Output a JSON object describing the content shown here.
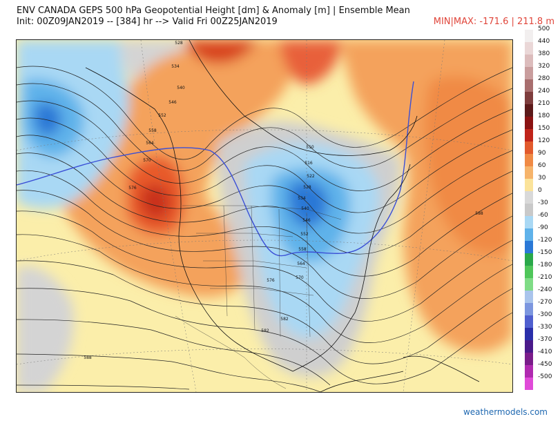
{
  "header": {
    "title": "ENV CANADA GEPS 500 hPa Geopotential Height [dm] & Anomaly [m] | Ensemble Mean",
    "subtitle": "Init: 00Z09JAN2019 -- [384] hr --> Valid Fri 00Z25JAN2019",
    "minmax": "MIN|MAX: -171.6 | 211.8 m"
  },
  "legend": {
    "entries": [
      {
        "label": "500",
        "color": "#f2efef"
      },
      {
        "label": "440",
        "color": "#ead7d7"
      },
      {
        "label": "380",
        "color": "#dcbcbc"
      },
      {
        "label": "320",
        "color": "#c99d9d"
      },
      {
        "label": "280",
        "color": "#a86e6e"
      },
      {
        "label": "240",
        "color": "#7e3d3d"
      },
      {
        "label": "210",
        "color": "#5c1a1a"
      },
      {
        "label": "180",
        "color": "#8a1212"
      },
      {
        "label": "150",
        "color": "#c0241a"
      },
      {
        "label": "120",
        "color": "#e25a2c"
      },
      {
        "label": "90",
        "color": "#f08a45"
      },
      {
        "label": "60",
        "color": "#f6b46b"
      },
      {
        "label": "30",
        "color": "#fbe39a"
      },
      {
        "label": "0",
        "color": "#d9d9d9"
      },
      {
        "label": "-30",
        "color": "#c9c9c9"
      },
      {
        "label": "-60",
        "color": "#a9d8f4"
      },
      {
        "label": "-90",
        "color": "#5fb2ea"
      },
      {
        "label": "-120",
        "color": "#2a78d6"
      },
      {
        "label": "-150",
        "color": "#2aa84a"
      },
      {
        "label": "-180",
        "color": "#4fc65a"
      },
      {
        "label": "-210",
        "color": "#7fdc86"
      },
      {
        "label": "-240",
        "color": "#a9c4ec"
      },
      {
        "label": "-270",
        "color": "#7c96df"
      },
      {
        "label": "-300",
        "color": "#4f5fcf"
      },
      {
        "label": "-330",
        "color": "#2a2faa"
      },
      {
        "label": "-370",
        "color": "#4a1a8a"
      },
      {
        "label": "-410",
        "color": "#7a1d8a"
      },
      {
        "label": "-450",
        "color": "#b02ab0"
      },
      {
        "label": "-500",
        "color": "#e04ad8"
      }
    ]
  },
  "map": {
    "contour_labels": [
      "522",
      "528",
      "534",
      "540",
      "546",
      "552",
      "558",
      "564",
      "570",
      "576",
      "582",
      "588",
      "510",
      "516",
      "522",
      "528",
      "534",
      "540",
      "546",
      "552",
      "558",
      "564",
      "570",
      "576",
      "582",
      "588"
    ]
  },
  "footer": {
    "credit": "weathermodels.com"
  }
}
